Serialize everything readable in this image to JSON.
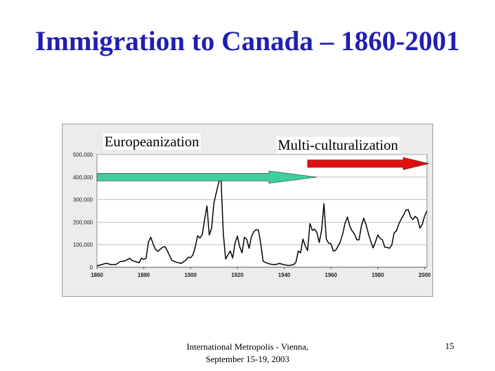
{
  "slide": {
    "title": "Immigration to Canada – 1860-2001",
    "footer_line1": "International Metropolis - Vienna,",
    "footer_line2": "September 15-19, 2003",
    "page_number": "15"
  },
  "annotations": {
    "europeanization": {
      "label": "Europeanization",
      "x_start": 1860,
      "x_end": 1954,
      "y": 400000,
      "color": "#3fcf9f"
    },
    "multiculturalization": {
      "label": "Multi-culturalization",
      "x_start": 1950,
      "x_end": 2002,
      "y": 460000,
      "color": "#e01010"
    }
  },
  "chart_data": {
    "type": "line",
    "title": "",
    "xlabel": "",
    "ylabel": "",
    "xlim": [
      1860,
      2001
    ],
    "ylim": [
      0,
      500000
    ],
    "grid": true,
    "x_ticks": [
      1860,
      1880,
      1900,
      1920,
      1940,
      1960,
      1980,
      2000
    ],
    "y_ticks": [
      0,
      100000,
      200000,
      300000,
      400000,
      500000
    ],
    "y_tick_labels": [
      "0",
      "100,000",
      "200,000",
      "300,000",
      "400,000",
      "500,000"
    ],
    "line_color": "#000000",
    "series": [
      {
        "name": "",
        "points": [
          [
            1860,
            6000
          ],
          [
            1862,
            12000
          ],
          [
            1864,
            18000
          ],
          [
            1866,
            12000
          ],
          [
            1868,
            12000
          ],
          [
            1870,
            25000
          ],
          [
            1872,
            28000
          ],
          [
            1874,
            40000
          ],
          [
            1875,
            30000
          ],
          [
            1878,
            20000
          ],
          [
            1879,
            40000
          ],
          [
            1880,
            35000
          ],
          [
            1881,
            40000
          ],
          [
            1882,
            112000
          ],
          [
            1883,
            133000
          ],
          [
            1884,
            104000
          ],
          [
            1885,
            80000
          ],
          [
            1886,
            70000
          ],
          [
            1888,
            88000
          ],
          [
            1889,
            92000
          ],
          [
            1890,
            75000
          ],
          [
            1892,
            31000
          ],
          [
            1894,
            22000
          ],
          [
            1896,
            17000
          ],
          [
            1898,
            32000
          ],
          [
            1899,
            45000
          ],
          [
            1900,
            42000
          ],
          [
            1901,
            55000
          ],
          [
            1902,
            90000
          ],
          [
            1903,
            140000
          ],
          [
            1904,
            130000
          ],
          [
            1905,
            145000
          ],
          [
            1906,
            212000
          ],
          [
            1907,
            272000
          ],
          [
            1908,
            143000
          ],
          [
            1909,
            174000
          ],
          [
            1910,
            286000
          ],
          [
            1911,
            331000
          ],
          [
            1912,
            375000
          ],
          [
            1913,
            401000
          ],
          [
            1914,
            150000
          ],
          [
            1915,
            37000
          ],
          [
            1916,
            55000
          ],
          [
            1917,
            72000
          ],
          [
            1918,
            41000
          ],
          [
            1919,
            107000
          ],
          [
            1920,
            138000
          ],
          [
            1921,
            91000
          ],
          [
            1922,
            64000
          ],
          [
            1923,
            133000
          ],
          [
            1924,
            124000
          ],
          [
            1925,
            84000
          ],
          [
            1926,
            136000
          ],
          [
            1927,
            158000
          ],
          [
            1928,
            167000
          ],
          [
            1929,
            165000
          ],
          [
            1930,
            105000
          ],
          [
            1931,
            27000
          ],
          [
            1932,
            21000
          ],
          [
            1934,
            14000
          ],
          [
            1936,
            11000
          ],
          [
            1938,
            17000
          ],
          [
            1940,
            11000
          ],
          [
            1942,
            7500
          ],
          [
            1944,
            12000
          ],
          [
            1945,
            22000
          ],
          [
            1946,
            72000
          ],
          [
            1947,
            64000
          ],
          [
            1948,
            125000
          ],
          [
            1949,
            95000
          ],
          [
            1950,
            74000
          ],
          [
            1951,
            194000
          ],
          [
            1952,
            164000
          ],
          [
            1953,
            169000
          ],
          [
            1954,
            154000
          ],
          [
            1955,
            110000
          ],
          [
            1956,
            165000
          ],
          [
            1957,
            282000
          ],
          [
            1958,
            125000
          ],
          [
            1959,
            107000
          ],
          [
            1960,
            104000
          ],
          [
            1961,
            72000
          ],
          [
            1962,
            75000
          ],
          [
            1963,
            93000
          ],
          [
            1964,
            113000
          ],
          [
            1965,
            147000
          ],
          [
            1966,
            195000
          ],
          [
            1967,
            223000
          ],
          [
            1968,
            184000
          ],
          [
            1969,
            162000
          ],
          [
            1970,
            148000
          ],
          [
            1971,
            122000
          ],
          [
            1972,
            122000
          ],
          [
            1973,
            184000
          ],
          [
            1974,
            218000
          ],
          [
            1975,
            188000
          ],
          [
            1976,
            149000
          ],
          [
            1977,
            115000
          ],
          [
            1978,
            86000
          ],
          [
            1979,
            112000
          ],
          [
            1980,
            143000
          ],
          [
            1981,
            128000
          ],
          [
            1982,
            121000
          ],
          [
            1983,
            89000
          ],
          [
            1984,
            88000
          ],
          [
            1985,
            84000
          ],
          [
            1986,
            99000
          ],
          [
            1987,
            152000
          ],
          [
            1988,
            162000
          ],
          [
            1989,
            192000
          ],
          [
            1990,
            214000
          ],
          [
            1991,
            231000
          ],
          [
            1992,
            253000
          ],
          [
            1993,
            256000
          ],
          [
            1994,
            224000
          ],
          [
            1995,
            212000
          ],
          [
            1996,
            226000
          ],
          [
            1997,
            216000
          ],
          [
            1998,
            174000
          ],
          [
            1999,
            190000
          ],
          [
            2000,
            227000
          ],
          [
            2001,
            250000
          ]
        ]
      }
    ]
  }
}
